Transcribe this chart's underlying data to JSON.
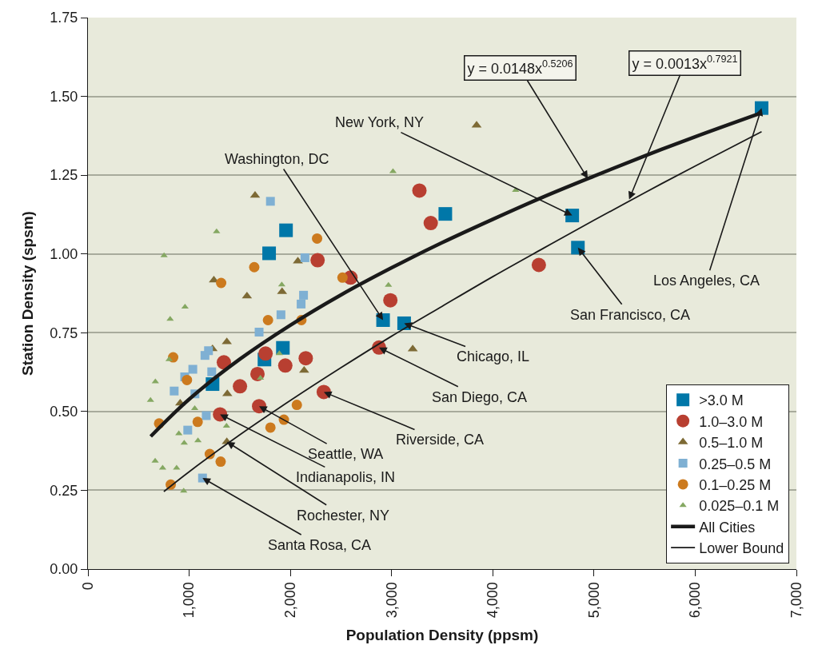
{
  "chart_data": {
    "type": "scatter",
    "xlabel": "Population Density (ppsm)",
    "ylabel": "Station Density (spsm)",
    "xlim": [
      0,
      7000
    ],
    "ylim": [
      0,
      1.75
    ],
    "xticks": [
      0,
      {
        "value": 1000,
        "label": "1,000"
      },
      {
        "value": 2000,
        "label": "2,000"
      },
      {
        "value": 3000,
        "label": "3,000"
      },
      {
        "value": 4000,
        "label": "4,000"
      },
      {
        "value": 5000,
        "label": "5,000"
      },
      {
        "value": 6000,
        "label": "6,000"
      },
      {
        "value": 7000,
        "label": "7,000"
      }
    ],
    "yticks": [
      {
        "value": 0,
        "label": "0.00"
      },
      {
        "value": 0.25,
        "label": "0.25"
      },
      {
        "value": 0.5,
        "label": "0.50"
      },
      {
        "value": 0.75,
        "label": "0.75"
      },
      {
        "value": 1.0,
        "label": "1.00"
      },
      {
        "value": 1.25,
        "label": "1.25"
      },
      {
        "value": 1.5,
        "label": "1.50"
      },
      {
        "value": 1.75,
        "label": "1.75"
      }
    ],
    "grid": "y",
    "legend": "bottom right",
    "series": [
      {
        "name": ">3.0 M",
        "color": "#0077a8",
        "marker": "square",
        "x": [
          1957,
          1790,
          1926,
          1744,
          1231,
          3531,
          4785,
          4841,
          2916,
          3124,
          6656
        ],
        "values": [
          1.075,
          1.002,
          0.702,
          0.665,
          0.587,
          1.127,
          1.122,
          1.02,
          0.79,
          0.78,
          1.463
        ]
      },
      {
        "name": "1.0–3.0 M",
        "color": "#b83f31",
        "marker": "circle",
        "x": [
          2269,
          1343,
          1755,
          1950,
          2152,
          1675,
          1502,
          1691,
          1305,
          2330,
          3275,
          3387,
          2594,
          2988,
          2876,
          4455
        ],
        "values": [
          0.98,
          0.656,
          0.684,
          0.646,
          0.669,
          0.619,
          0.58,
          0.517,
          0.491,
          0.562,
          1.201,
          1.098,
          0.925,
          0.853,
          0.703,
          0.965
        ]
      },
      {
        "name": "0.5–1.0 M",
        "color": "#7d6a35",
        "marker": "triangle",
        "x": [
          1651,
          2074,
          1244,
          1571,
          1918,
          1372,
          1231,
          1377,
          911,
          2136,
          1372,
          3840,
          3209
        ],
        "values": [
          1.186,
          0.977,
          0.917,
          0.866,
          0.88,
          0.721,
          0.699,
          0.556,
          0.526,
          0.63,
          0.404,
          1.408,
          0.698
        ]
      },
      {
        "name": "0.25–0.5 M",
        "color": "#7fb0d3",
        "marker": "square",
        "x": [
          1803,
          2144,
          2130,
          2106,
          1907,
          1691,
          1191,
          1156,
          1036,
          956,
          1223,
          852,
          1057,
          1169,
          986,
          1132
        ],
        "values": [
          1.167,
          0.988,
          0.869,
          0.841,
          0.807,
          0.752,
          0.693,
          0.678,
          0.634,
          0.61,
          0.626,
          0.565,
          0.556,
          0.487,
          0.441,
          0.289
        ]
      },
      {
        "name": "0.1–0.25 M",
        "color": "#cc7a1e",
        "marker": "circle",
        "x": [
          2264,
          1643,
          1316,
          2515,
          1779,
          2109,
          842,
          978,
          703,
          1084,
          2064,
          1936,
          1803,
          1204,
          1311,
          818
        ],
        "values": [
          1.049,
          0.958,
          0.908,
          0.925,
          0.79,
          0.79,
          0.672,
          0.6,
          0.462,
          0.467,
          0.521,
          0.474,
          0.449,
          0.365,
          0.341,
          0.268
        ]
      },
      {
        "name": "0.025–0.1 M",
        "color": "#85a862",
        "marker": "triangle",
        "x": [
          1271,
          752,
          959,
          812,
          1915,
          802,
          666,
          618,
          1891,
          1704,
          1055,
          1369,
          898,
          1087,
          951,
          664,
          738,
          876,
          946,
          3014,
          4226,
          2969
        ],
        "values": [
          1.071,
          0.995,
          0.832,
          0.793,
          0.902,
          0.665,
          0.595,
          0.536,
          0.684,
          0.606,
          0.51,
          0.454,
          0.43,
          0.408,
          0.4,
          0.343,
          0.321,
          0.321,
          0.248,
          1.262,
          1.202,
          0.901
        ]
      },
      {
        "name": "All Cities",
        "type": "line",
        "color": "#1a1a1a",
        "marker": "none",
        "line_style": "solid",
        "x": [
          620,
          1000,
          1500,
          2000,
          2500,
          3000,
          3500,
          4000,
          4500,
          5000,
          5500,
          6000,
          6656
        ],
        "values": [
          0.421,
          0.539,
          0.666,
          0.774,
          0.87,
          0.956,
          1.036,
          1.11,
          1.181,
          1.247,
          1.311,
          1.372,
          1.448
        ]
      },
      {
        "name": "Lower Bound",
        "type": "line",
        "color": "#1a1a1a",
        "marker": "none",
        "line_style": "solid",
        "x": [
          750,
          1000,
          1500,
          2000,
          2500,
          3000,
          3500,
          4000,
          4500,
          5000,
          5500,
          6000,
          6656
        ],
        "values": [
          0.246,
          0.309,
          0.426,
          0.535,
          0.639,
          0.739,
          0.834,
          0.928,
          1.018,
          1.107,
          1.194,
          1.279,
          1.388
        ]
      }
    ],
    "annotations": [
      {
        "text": "New York, NY",
        "x": 4785,
        "y": 1.122
      },
      {
        "text": "Washington, DC",
        "x": 2916,
        "y": 0.79
      },
      {
        "text": "Chicago, IL",
        "x": 3124,
        "y": 0.78
      },
      {
        "text": "San Diego, CA",
        "x": 2876,
        "y": 0.703
      },
      {
        "text": "Riverside, CA",
        "x": 2330,
        "y": 0.562
      },
      {
        "text": "Seattle, WA",
        "x": 1691,
        "y": 0.517
      },
      {
        "text": "Indianapolis, IN",
        "x": 1305,
        "y": 0.491
      },
      {
        "text": "Rochester, NY",
        "x": 1372,
        "y": 0.404
      },
      {
        "text": "Santa Rosa, CA",
        "x": 1132,
        "y": 0.289
      },
      {
        "text": "San Francisco, CA",
        "x": 4841,
        "y": 1.02
      },
      {
        "text": "Los Angeles, CA",
        "x": 6656,
        "y": 1.463
      },
      {
        "text": "y = 0.0148x$^{0.5206}$",
        "x": 4939,
        "y": 1.239
      },
      {
        "text": "y = 0.0013x$^{0.7921}$",
        "x": 5347,
        "y": 1.173
      }
    ]
  }
}
